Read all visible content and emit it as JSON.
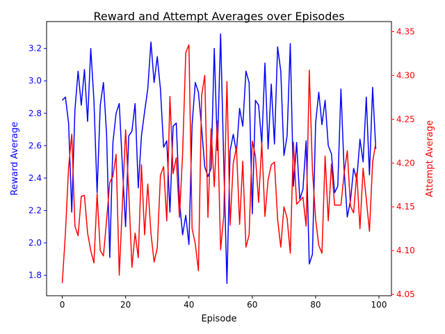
{
  "chart_data": {
    "type": "line",
    "title": "Reward and Attempt Averages over Episodes",
    "xlabel": "Episode",
    "xlim": [
      -4.95,
      103.95
    ],
    "xticks": [
      0,
      20,
      40,
      60,
      80,
      100
    ],
    "y_left": {
      "label": "Reward Average",
      "color": "#0000ff",
      "lim": [
        1.674,
        3.366
      ],
      "ticks": [
        "1.8",
        "2.0",
        "2.2",
        "2.4",
        "2.6",
        "2.8",
        "3.0",
        "3.2"
      ]
    },
    "y_right": {
      "label": "Attempt Average",
      "color": "#ff0000",
      "lim": [
        4.0485,
        4.3615
      ],
      "ticks": [
        "4.05",
        "4.10",
        "4.15",
        "4.20",
        "4.25",
        "4.30",
        "4.35"
      ]
    },
    "grid": false,
    "series": [
      {
        "axis": "left",
        "color": "#0000ff",
        "values": [
          2.88,
          2.9,
          2.74,
          2.19,
          2.82,
          3.06,
          2.85,
          3.07,
          2.75,
          3.2,
          2.88,
          2.31,
          2.85,
          2.99,
          2.67,
          1.91,
          2.62,
          2.8,
          2.86,
          2.47,
          2.1,
          2.66,
          2.69,
          2.86,
          2.34,
          2.66,
          2.81,
          2.95,
          3.24,
          2.99,
          3.15,
          2.95,
          2.59,
          2.63,
          2.19,
          2.72,
          2.74,
          2.26,
          2.05,
          2.17,
          1.99,
          2.73,
          2.99,
          2.93,
          2.71,
          2.47,
          2.41,
          2.46,
          3.2,
          2.57,
          3.29,
          2.49,
          1.75,
          2.57,
          2.67,
          2.56,
          2.83,
          2.72,
          3.06,
          2.99,
          2.18,
          2.88,
          2.85,
          2.61,
          3.11,
          2.58,
          2.98,
          2.61,
          3.21,
          3.06,
          2.54,
          2.66,
          3.23,
          2.35,
          2.62,
          2.27,
          2.33,
          2.63,
          1.87,
          1.93,
          2.74,
          2.93,
          2.73,
          2.88,
          2.6,
          2.55,
          2.31,
          2.35,
          2.95,
          2.45,
          2.16,
          2.26,
          2.46,
          2.39,
          2.64,
          2.5,
          2.9,
          2.42,
          2.96,
          2.58
        ]
      },
      {
        "axis": "right",
        "color": "#ff0000",
        "values": [
          4.063,
          4.12,
          4.195,
          4.233,
          4.128,
          4.117,
          4.162,
          4.163,
          4.12,
          4.1,
          4.086,
          4.165,
          4.1,
          4.094,
          4.135,
          4.178,
          4.185,
          4.21,
          4.072,
          4.154,
          4.238,
          4.167,
          4.081,
          4.12,
          4.092,
          4.198,
          4.118,
          4.176,
          4.12,
          4.087,
          4.103,
          4.186,
          4.196,
          4.134,
          4.276,
          4.188,
          4.206,
          4.138,
          4.21,
          4.326,
          4.335,
          4.125,
          4.108,
          4.077,
          4.277,
          4.3,
          4.138,
          4.239,
          4.173,
          4.248,
          4.101,
          4.14,
          4.293,
          4.129,
          4.2,
          4.218,
          4.13,
          4.202,
          4.104,
          4.118,
          4.225,
          4.208,
          4.155,
          4.223,
          4.139,
          4.181,
          4.198,
          4.201,
          4.136,
          4.104,
          4.15,
          4.137,
          4.097,
          4.224,
          4.153,
          4.157,
          4.161,
          4.128,
          4.306,
          4.192,
          4.136,
          4.106,
          4.097,
          4.208,
          4.134,
          4.199,
          4.152,
          4.152,
          4.152,
          4.188,
          4.214,
          4.151,
          4.143,
          4.189,
          4.125,
          4.194,
          4.159,
          4.122,
          4.201,
          4.223
        ]
      }
    ]
  }
}
